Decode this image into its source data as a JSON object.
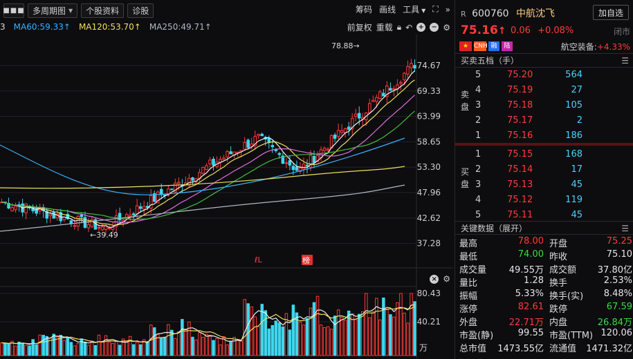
{
  "toolbar": {
    "menu_icon": "more-dots-icon",
    "buttons": [
      "多周期图",
      "个股资料",
      "诊股"
    ],
    "right_items": [
      "筹码",
      "画线",
      "工具"
    ]
  },
  "ma_bar": {
    "items": [
      {
        "label": "3",
        "color": "#dcdcdc"
      },
      {
        "label": "MA60:59.33↑",
        "color": "#3ab0ff"
      },
      {
        "label": "MA120:53.70↑",
        "color": "#f0e060"
      },
      {
        "label": "MA250:49.71↑",
        "color": "#b0b8c8"
      }
    ],
    "right_items": [
      "前复权",
      "重载"
    ]
  },
  "main_chart": {
    "y_labels": [
      "74.67",
      "69.33",
      "63.99",
      "58.65",
      "53.30",
      "47.96",
      "42.62",
      "37.28"
    ],
    "high_marker": "78.88→",
    "low_marker": "←39.49",
    "badges": [
      "ℓL",
      "榜"
    ]
  },
  "volume_chart": {
    "y_labels": [
      "80.43",
      "40.21"
    ],
    "unit": "万"
  },
  "stock": {
    "prefix": "R",
    "code": "600760",
    "name": "中航沈飞",
    "add_fav": "加自选",
    "price": "75.16",
    "price_arrow": "↑",
    "change": "0.06",
    "change_pct": "+0.08%",
    "status": "闭市",
    "tags": [
      "CN",
      "CNH",
      "融",
      "陆"
    ],
    "sector_label": "航空装备:",
    "sector_value": "+4.33%"
  },
  "order_book": {
    "title": "买卖五档（手）",
    "sell_label": "卖盘",
    "buy_label": "买盘",
    "sell": [
      {
        "level": "5",
        "price": "75.20",
        "vol": "564"
      },
      {
        "level": "4",
        "price": "75.19",
        "vol": "27"
      },
      {
        "level": "3",
        "price": "75.18",
        "vol": "105"
      },
      {
        "level": "2",
        "price": "75.17",
        "vol": "2"
      },
      {
        "level": "1",
        "price": "75.16",
        "vol": "186"
      }
    ],
    "buy": [
      {
        "level": "1",
        "price": "75.15",
        "vol": "168"
      },
      {
        "level": "2",
        "price": "75.14",
        "vol": "17"
      },
      {
        "level": "3",
        "price": "75.13",
        "vol": "45"
      },
      {
        "level": "4",
        "price": "75.12",
        "vol": "119"
      },
      {
        "level": "5",
        "price": "75.11",
        "vol": "45"
      }
    ]
  },
  "key_data": {
    "title": "关键数据（展开）",
    "rows": [
      {
        "k1": "最高",
        "v1": "78.00",
        "c1": "red",
        "k2": "开盘",
        "v2": "75.25",
        "c2": "red"
      },
      {
        "k1": "最低",
        "v1": "74.00",
        "c1": "green",
        "k2": "昨收",
        "v2": "75.10",
        "c2": "white"
      },
      {
        "k1": "成交量",
        "v1": "49.55万",
        "c1": "white",
        "k2": "成交额",
        "v2": "37.80亿",
        "c2": "white"
      },
      {
        "k1": "量比",
        "v1": "1.28",
        "c1": "white",
        "k2": "换手",
        "v2": "2.53%",
        "c2": "white"
      },
      {
        "k1": "振幅",
        "v1": "5.33%",
        "c1": "white",
        "k2": "换手(实)",
        "v2": "8.48%",
        "c2": "white"
      },
      {
        "k1": "涨停",
        "v1": "82.61",
        "c1": "red",
        "k2": "跌停",
        "v2": "67.59",
        "c2": "green"
      },
      {
        "k1": "外盘",
        "v1": "22.71万",
        "c1": "red",
        "k2": "内盘",
        "v2": "26.84万",
        "c2": "green"
      },
      {
        "k1": "市盈(静)",
        "v1": "99.55",
        "c1": "white",
        "k2": "市盈(TTM)",
        "v2": "120.06",
        "c2": "white"
      },
      {
        "k1": "总市值",
        "v1": "1473.55亿",
        "c1": "white",
        "k2": "流通值",
        "v2": "1471.32亿",
        "c2": "white"
      }
    ]
  }
}
